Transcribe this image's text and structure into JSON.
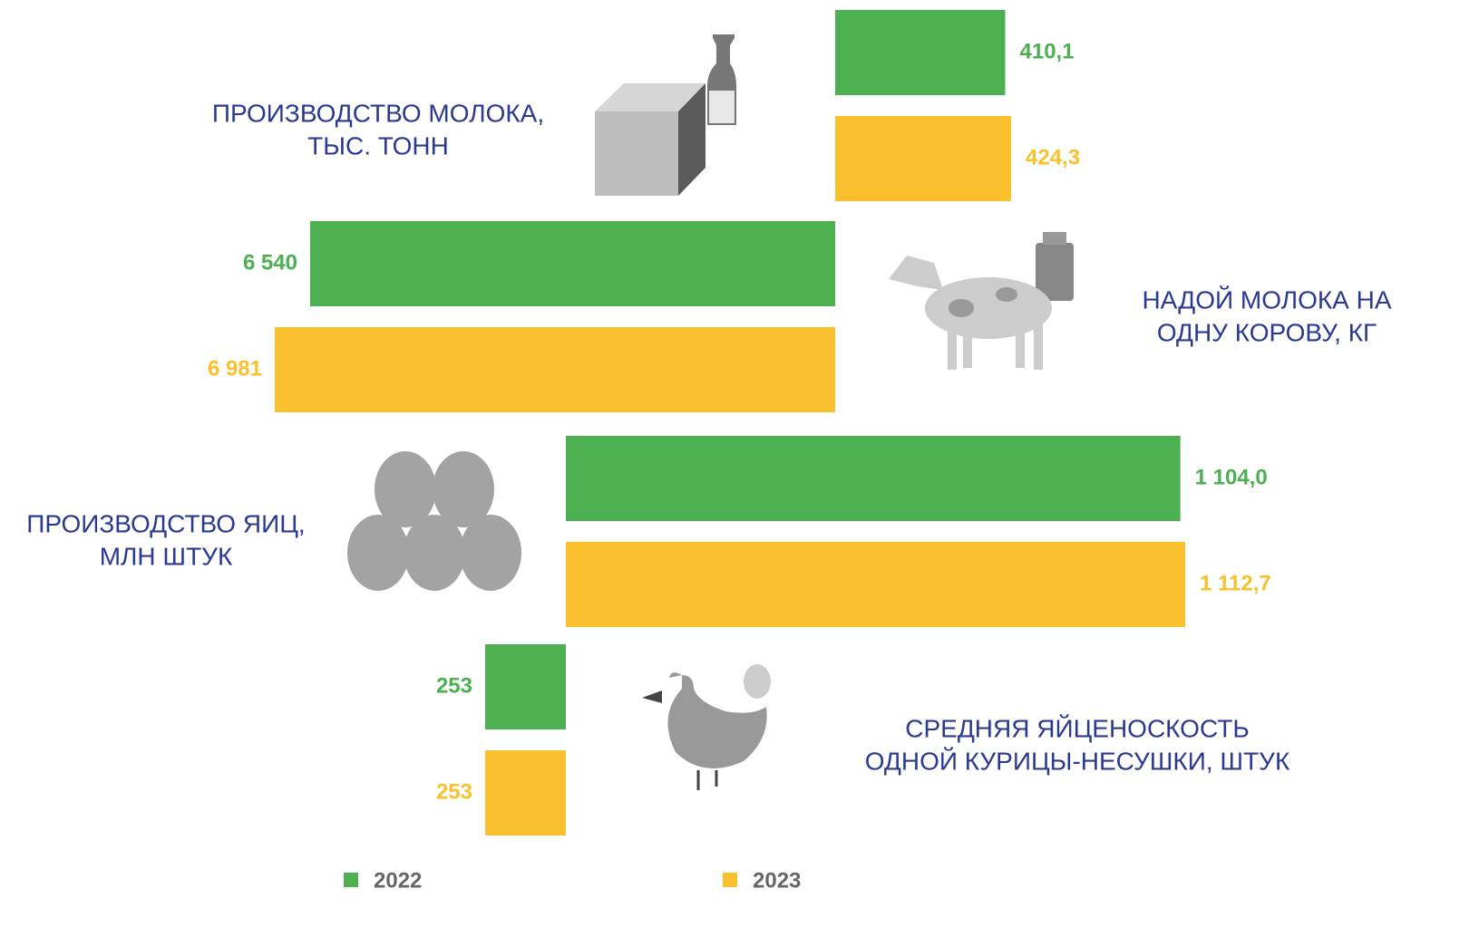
{
  "chart_data": {
    "type": "bar",
    "categories": [
      [
        "ПРОИЗВОДСТВО МОЛОКА,",
        "ТЫС. ТОНН"
      ],
      [
        "НАДОЙ МОЛОКА НА",
        "ОДНУ КОРОВУ, КГ"
      ],
      [
        "ПРОИЗВОДСТВО ЯИЦ,",
        "МЛН ШТУК"
      ],
      [
        "СРЕДНЯЯ ЯЙЦЕНОСКОСТЬ",
        "ОДНОЙ КУРИЦЫ-НЕСУШКИ, ШТУК"
      ]
    ],
    "series": [
      {
        "name": "2022",
        "color": "#4caf50",
        "values": [
          410.1,
          6540,
          1104.0,
          253
        ],
        "value_labels": [
          "410,1",
          "6 540",
          "1 104,0",
          "253"
        ]
      },
      {
        "name": "2023",
        "color": "#fbc02d",
        "values": [
          424.3,
          6981,
          1112.7,
          253
        ],
        "value_labels": [
          "424,3",
          "6 981",
          "1 112,7",
          "253"
        ]
      }
    ]
  }
}
